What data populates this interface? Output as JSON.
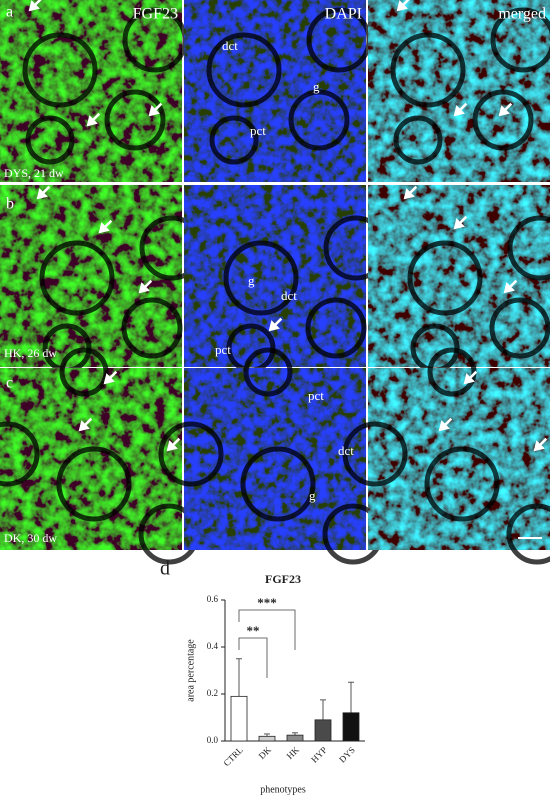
{
  "panels": {
    "headers": [
      "FGF23",
      "DAPI",
      "merged"
    ],
    "rows": [
      {
        "label": "a",
        "condition": "DYS, 21 dw",
        "annotations": [
          "dct",
          "g",
          "pct"
        ]
      },
      {
        "label": "b",
        "condition": "HK, 26 dw",
        "annotations": [
          "g",
          "dct",
          "pct"
        ]
      },
      {
        "label": "c",
        "condition": "DK, 30 dw",
        "annotations": [
          "pct",
          "dct",
          "g"
        ]
      }
    ]
  },
  "chart_label": "d",
  "chart_data": {
    "type": "bar",
    "title": "FGF23",
    "y_label": "area percentage",
    "x_label": "phenotypes",
    "categories": [
      "CTRL",
      "DK",
      "HK",
      "HYP",
      "DYS"
    ],
    "values": [
      0.19,
      0.02,
      0.025,
      0.09,
      0.12
    ],
    "errors": [
      0.16,
      0.01,
      0.01,
      0.085,
      0.13
    ],
    "colors": [
      "#ffffff",
      "#d0d0d0",
      "#8a8a8a",
      "#4a4a4a",
      "#111111"
    ],
    "ylim": [
      0,
      0.6
    ],
    "yticks": [
      {
        "value": 0,
        "label": "0.0"
      },
      0.2,
      0.4,
      0.6
    ],
    "significance": [
      "**",
      "***"
    ]
  }
}
